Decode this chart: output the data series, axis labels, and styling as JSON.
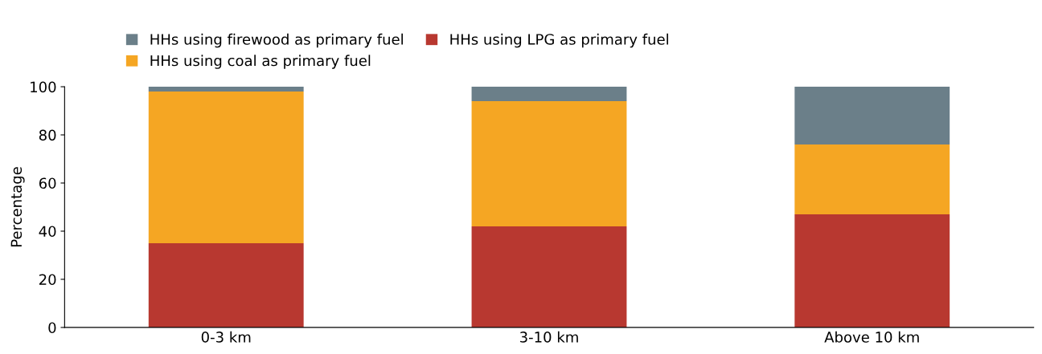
{
  "chart_data": {
    "type": "bar",
    "stacked": true,
    "ylabel": "Percentage",
    "categories": [
      "0-3 km",
      "3-10 km",
      "Above 10 km"
    ],
    "series": [
      {
        "name": "HHs using LPG as primary fuel",
        "color": "#b83830",
        "values": [
          35,
          42,
          47
        ]
      },
      {
        "name": "HHs using coal as primary fuel",
        "color": "#f5a623",
        "values": [
          63,
          52,
          29
        ]
      },
      {
        "name": "HHs using firewood as primary fuel",
        "color": "#6b7f89",
        "values": [
          2,
          6,
          24
        ]
      }
    ],
    "ylim": [
      0,
      100
    ],
    "yticks": [
      0,
      20,
      40,
      60,
      80,
      100
    ],
    "grid": false,
    "legend": "top left"
  }
}
